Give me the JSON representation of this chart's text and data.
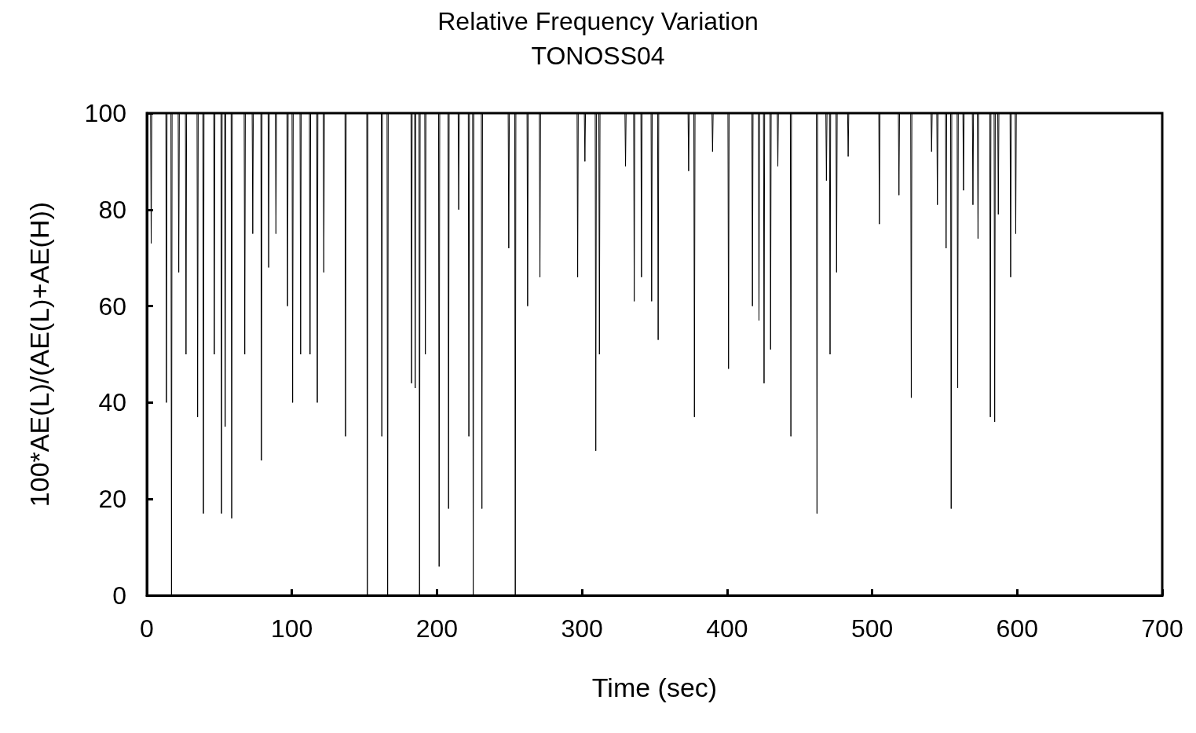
{
  "chart_data": {
    "type": "line",
    "title": "Relative Frequency Variation",
    "subtitle": "TONOSS04",
    "xlabel": "Time (sec)",
    "ylabel": "100*AE(L)/(AE(L)+AE(H))",
    "xlim": [
      0,
      700
    ],
    "xticks": [
      0,
      100,
      200,
      300,
      400,
      500,
      600,
      700
    ],
    "ylim": [
      0,
      100
    ],
    "yticks": [
      0,
      20,
      40,
      60,
      80,
      100
    ],
    "grid": false,
    "marker": "none",
    "line_style": "solid",
    "series": [
      {
        "color": "#000000",
        "x": [
          0,
          2.6,
          3,
          3.4,
          13.1,
          13.5,
          13.9,
          16.6,
          17,
          17.4,
          21.6,
          22,
          22.4,
          26.6,
          27,
          27.4,
          34.6,
          35,
          35.4,
          38.6,
          39,
          39.4,
          46.1,
          46.5,
          46.9,
          51.1,
          51.5,
          51.9,
          53.6,
          54,
          54.4,
          58.1,
          58.5,
          58.9,
          67.1,
          67.5,
          67.9,
          72.6,
          73,
          73.4,
          78.6,
          79,
          79.4,
          83.6,
          84,
          84.4,
          88.6,
          89,
          89.4,
          96.6,
          97,
          97.4,
          100.1,
          100.5,
          100.9,
          105.6,
          106,
          106.4,
          112.1,
          112.5,
          112.9,
          117.1,
          117.5,
          117.9,
          121.6,
          122,
          122.4,
          136.6,
          137,
          137.4,
          151.6,
          152,
          152.4,
          161.6,
          162,
          162.4,
          165.6,
          166,
          166.4,
          182.1,
          182.5,
          182.9,
          184.6,
          185,
          185.4,
          187.6,
          188,
          188.4,
          191.6,
          192,
          192.4,
          201.1,
          201.5,
          201.9,
          207.6,
          208,
          208.4,
          214.6,
          215,
          215.4,
          221.6,
          222,
          222.4,
          224.6,
          225,
          225.4,
          230.6,
          231,
          231.4,
          249.1,
          249.5,
          249.9,
          253.6,
          254,
          254.4,
          262.1,
          262.5,
          262.9,
          270.6,
          271,
          271.4,
          296.6,
          297,
          297.4,
          301.6,
          302,
          302.4,
          309.1,
          309.5,
          309.9,
          311.6,
          312,
          312.4,
          329.6,
          330,
          330.4,
          335.6,
          336,
          336.4,
          340.6,
          341,
          341.4,
          347.6,
          348,
          348.4,
          352.1,
          352.5,
          352.9,
          373.1,
          373.5,
          373.9,
          377.1,
          377.5,
          377.9,
          389.6,
          390,
          390.4,
          400.6,
          401,
          401.4,
          417.1,
          417.5,
          417.9,
          421.6,
          422,
          422.4,
          425.1,
          425.5,
          425.9,
          429.6,
          430,
          430.4,
          434.6,
          435,
          435.4,
          443.6,
          444,
          444.4,
          461.6,
          462,
          462.4,
          468.1,
          468.5,
          468.9,
          470.6,
          471,
          471.4,
          475.1,
          475.5,
          475.9,
          483.1,
          483.5,
          483.9,
          504.6,
          505,
          505.4,
          518.1,
          518.5,
          518.9,
          526.6,
          527,
          527.4,
          540.6,
          541,
          541.4,
          544.6,
          545,
          545.4,
          550.6,
          551,
          551.4,
          554.1,
          554.5,
          554.9,
          558.6,
          559,
          559.4,
          562.6,
          563,
          563.4,
          569.1,
          569.5,
          569.9,
          572.6,
          573,
          573.4,
          581.1,
          581.5,
          581.9,
          584.1,
          584.5,
          584.9,
          586.6,
          587,
          587.4,
          595.1,
          595.5,
          595.9,
          598.6,
          599,
          599.4,
          601
        ],
        "values": [
          100,
          100,
          73,
          100,
          100,
          40,
          100,
          100,
          0,
          100,
          100,
          67,
          100,
          100,
          50,
          100,
          100,
          37,
          100,
          100,
          17,
          100,
          100,
          50,
          100,
          100,
          17,
          100,
          100,
          35,
          100,
          100,
          16,
          100,
          100,
          50,
          100,
          100,
          75,
          100,
          100,
          28,
          100,
          100,
          68,
          100,
          100,
          75,
          100,
          100,
          60,
          100,
          100,
          40,
          100,
          100,
          50,
          100,
          100,
          50,
          100,
          100,
          40,
          100,
          100,
          67,
          100,
          100,
          33,
          100,
          100,
          0,
          100,
          100,
          33,
          100,
          100,
          0,
          100,
          100,
          44,
          100,
          100,
          43,
          100,
          100,
          0,
          100,
          100,
          50,
          100,
          100,
          6,
          100,
          100,
          18,
          100,
          100,
          80,
          100,
          100,
          33,
          100,
          100,
          0,
          100,
          100,
          18,
          100,
          100,
          72,
          100,
          100,
          0,
          100,
          100,
          60,
          100,
          100,
          66,
          100,
          100,
          66,
          100,
          100,
          90,
          100,
          100,
          30,
          100,
          100,
          50,
          100,
          100,
          89,
          100,
          100,
          61,
          100,
          100,
          66,
          100,
          100,
          61,
          100,
          100,
          53,
          100,
          100,
          88,
          100,
          100,
          37,
          100,
          100,
          92,
          100,
          100,
          47,
          100,
          100,
          60,
          100,
          100,
          57,
          100,
          100,
          44,
          100,
          100,
          51,
          100,
          100,
          89,
          100,
          100,
          33,
          100,
          100,
          17,
          100,
          100,
          86,
          100,
          100,
          50,
          100,
          100,
          67,
          100,
          100,
          91,
          100,
          100,
          77,
          100,
          100,
          83,
          100,
          100,
          41,
          100,
          100,
          92,
          100,
          100,
          81,
          100,
          100,
          72,
          100,
          100,
          18,
          100,
          100,
          43,
          100,
          100,
          84,
          100,
          100,
          81,
          100,
          100,
          74,
          100,
          100,
          37,
          100,
          100,
          36,
          100,
          100,
          79,
          100,
          100,
          66,
          100,
          100,
          75,
          100,
          100
        ]
      }
    ]
  }
}
